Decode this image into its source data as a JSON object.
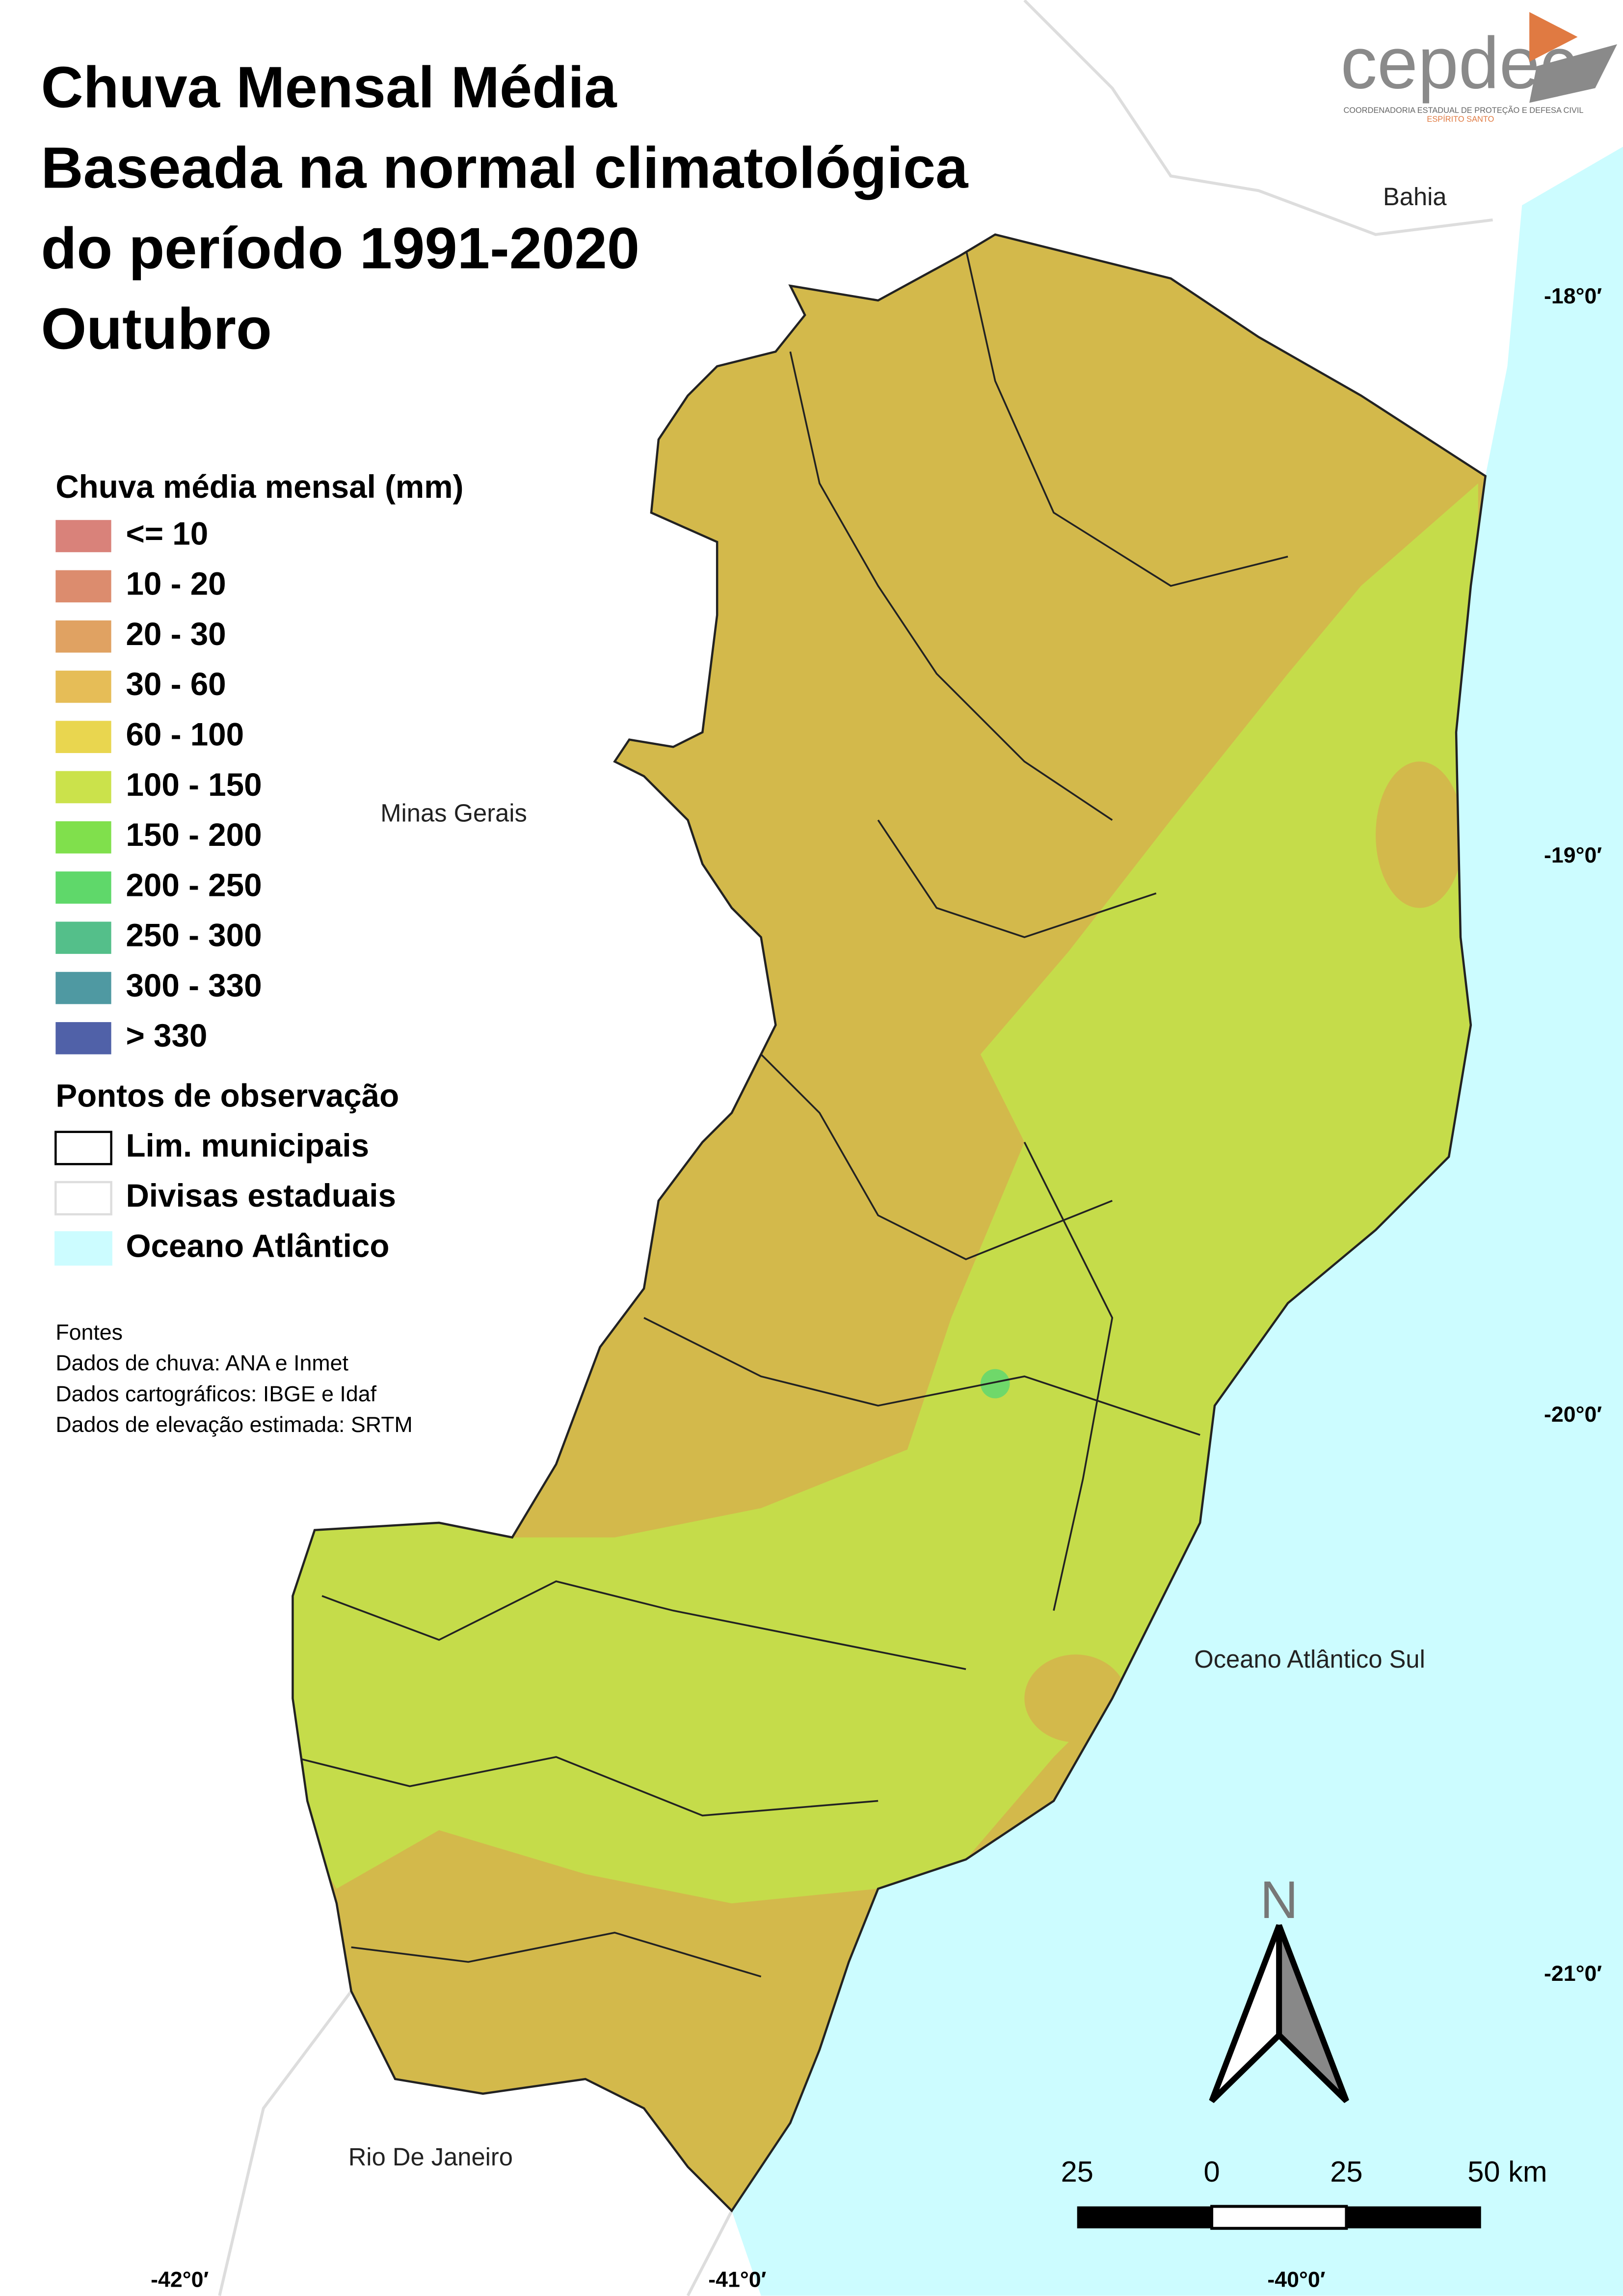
{
  "title": {
    "lines": [
      "Chuva Mensal Média",
      "Baseada na normal climatológica",
      "do período 1991-2020",
      "Outubro"
    ]
  },
  "logo": {
    "name": "cepdec",
    "subtitle": "COORDENADORIA ESTADUAL DE PROTEÇÃO E DEFESA CIVIL",
    "state": "ESPÍRITO SANTO"
  },
  "legend": {
    "title": "Chuva média mensal (mm)",
    "items": [
      {
        "label": "<= 10",
        "color": "#d9827a"
      },
      {
        "label": "10 - 20",
        "color": "#dc8c6e"
      },
      {
        "label": "20 - 30",
        "color": "#e0a262"
      },
      {
        "label": "30 - 60",
        "color": "#e6bd57"
      },
      {
        "label": "60 - 100",
        "color": "#e9d64f"
      },
      {
        "label": "100 - 150",
        "color": "#cbe24b"
      },
      {
        "label": "150 - 200",
        "color": "#80e04c"
      },
      {
        "label": "200 - 250",
        "color": "#5fd86a"
      },
      {
        "label": "250 - 300",
        "color": "#54bf8a"
      },
      {
        "label": "300 - 330",
        "color": "#4f99a2"
      },
      {
        "label": "> 330",
        "color": "#5061a8"
      }
    ],
    "layers_title": "Pontos de observação",
    "layers": [
      {
        "label": "Lim. municipais",
        "color": "#ffffff",
        "stroke": "#000000"
      },
      {
        "label": "Divisas estaduais",
        "color": "#ffffff",
        "stroke": "#dddddd"
      },
      {
        "label": "Oceano Atlântico",
        "color": "#ccfcff",
        "stroke": "#ccfcff"
      }
    ]
  },
  "sources": {
    "lines": [
      "Fontes",
      "Dados de chuva: ANA e Inmet",
      "Dados cartográficos: IBGE e Idaf",
      "Dados de elevação estimada: SRTM"
    ]
  },
  "places": [
    "Bahia",
    "Minas Gerais",
    "Oceano Atlântico Sul",
    "Rio De Janeiro"
  ],
  "latitudes": [
    "-18°0′",
    "-19°0′",
    "-20°0′",
    "-21°0′"
  ],
  "longitudes": [
    "-42°0′",
    "-41°0′",
    "-40°0′"
  ],
  "scale_bar": [
    "25",
    "0",
    "25",
    "50 km"
  ],
  "north": "N"
}
